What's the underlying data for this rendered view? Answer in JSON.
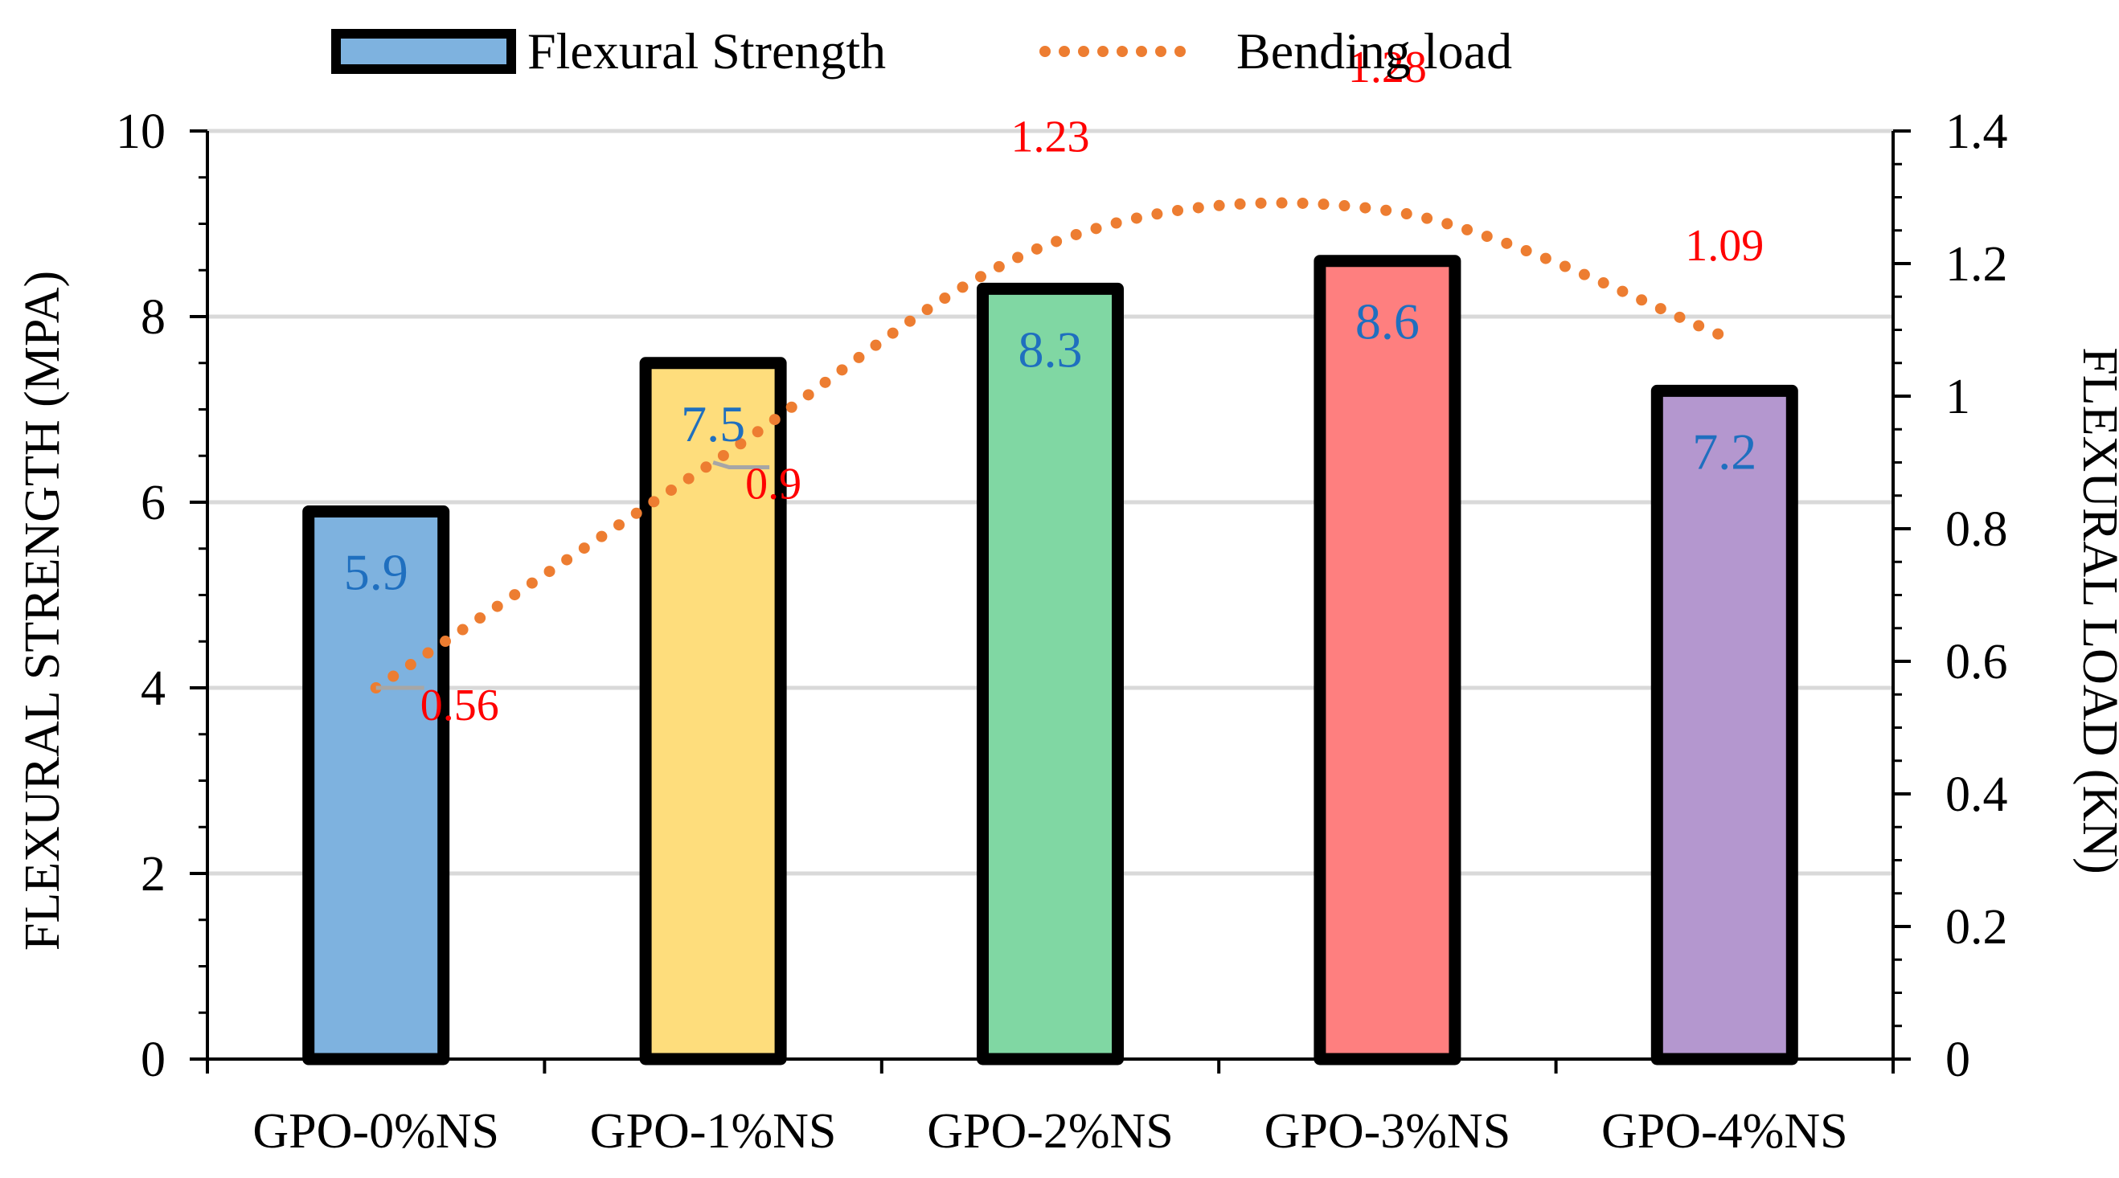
{
  "chart_data": {
    "type": "bar",
    "categories": [
      "GPO-0%NS",
      "GPO-1%NS",
      "GPO-2%NS",
      "GPO-3%NS",
      "GPO-4%NS"
    ],
    "series": [
      {
        "name": "Flexural Strength",
        "axis": "left",
        "kind": "bar",
        "values": [
          5.9,
          7.5,
          8.3,
          8.6,
          7.2
        ],
        "labels": [
          "5.9",
          "7.5",
          "8.3",
          "8.6",
          "7.2"
        ],
        "colors": [
          "#7EB2DF",
          "#FEDD7C",
          "#80D7A3",
          "#FE7F7F",
          "#B497CF"
        ],
        "label_color": "#1F6FBF"
      },
      {
        "name": "Bending load",
        "axis": "right",
        "kind": "line",
        "style": "dotted",
        "color": "#ED7D31",
        "values": [
          0.56,
          0.9,
          1.23,
          1.28,
          1.09
        ],
        "labels": [
          "0.56",
          "0.9",
          "1.23",
          "1.28",
          "1.09"
        ],
        "label_color": "#FF0000"
      }
    ],
    "ylabel": "FLEXURAL STRENGTH (MPA)",
    "y2label": "FLEXURAL LOAD (KN)",
    "ylim": [
      0,
      10
    ],
    "y2lim": [
      0,
      1.4
    ],
    "yticks": [
      "0",
      "2",
      "4",
      "6",
      "8",
      "10"
    ],
    "y2ticks": [
      "0",
      "0.2",
      "0.4",
      "0.6",
      "0.8",
      "1",
      "1.2",
      "1.4"
    ],
    "grid": true,
    "legend": "top-center"
  }
}
